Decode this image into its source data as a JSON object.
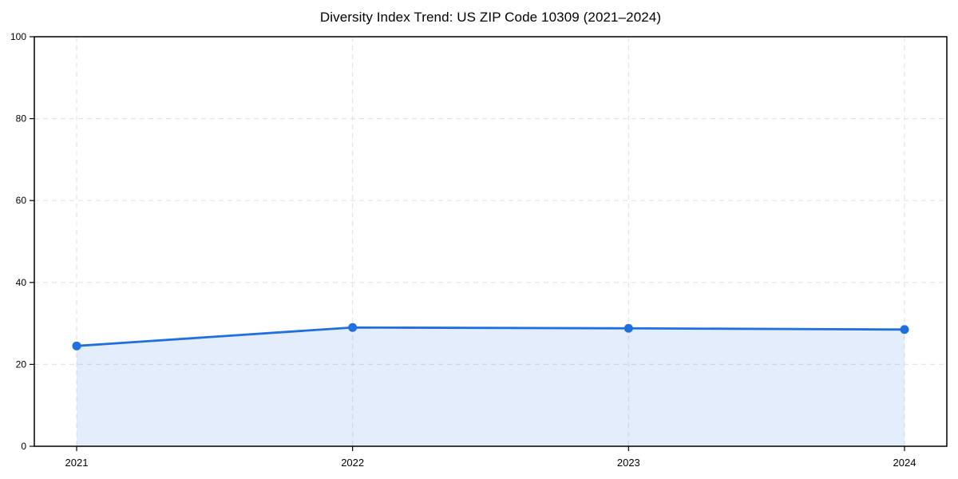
{
  "chart_data": {
    "type": "area",
    "title": "Diversity Index Trend: US ZIP Code 10309 (2021–2024)",
    "categories": [
      "2021",
      "2022",
      "2023",
      "2024"
    ],
    "series": [
      {
        "name": "Diversity Index",
        "values": [
          24.5,
          29.0,
          28.8,
          28.5
        ]
      }
    ],
    "xlabel": "",
    "ylabel": "",
    "ylim": [
      0,
      100
    ],
    "yticks": [
      0,
      20,
      40,
      60,
      80,
      100
    ],
    "grid": "dashed-both-directions",
    "legend_position": "none",
    "marker_style": "filled-circle",
    "colors": {
      "line": "#1f6fe0",
      "marker": "#1f6fe0",
      "fill": "rgba(31,111,224,0.12)",
      "grid": "#e3e3e3",
      "spine": "#000000",
      "text": "#000000",
      "background": "#ffffff"
    }
  }
}
